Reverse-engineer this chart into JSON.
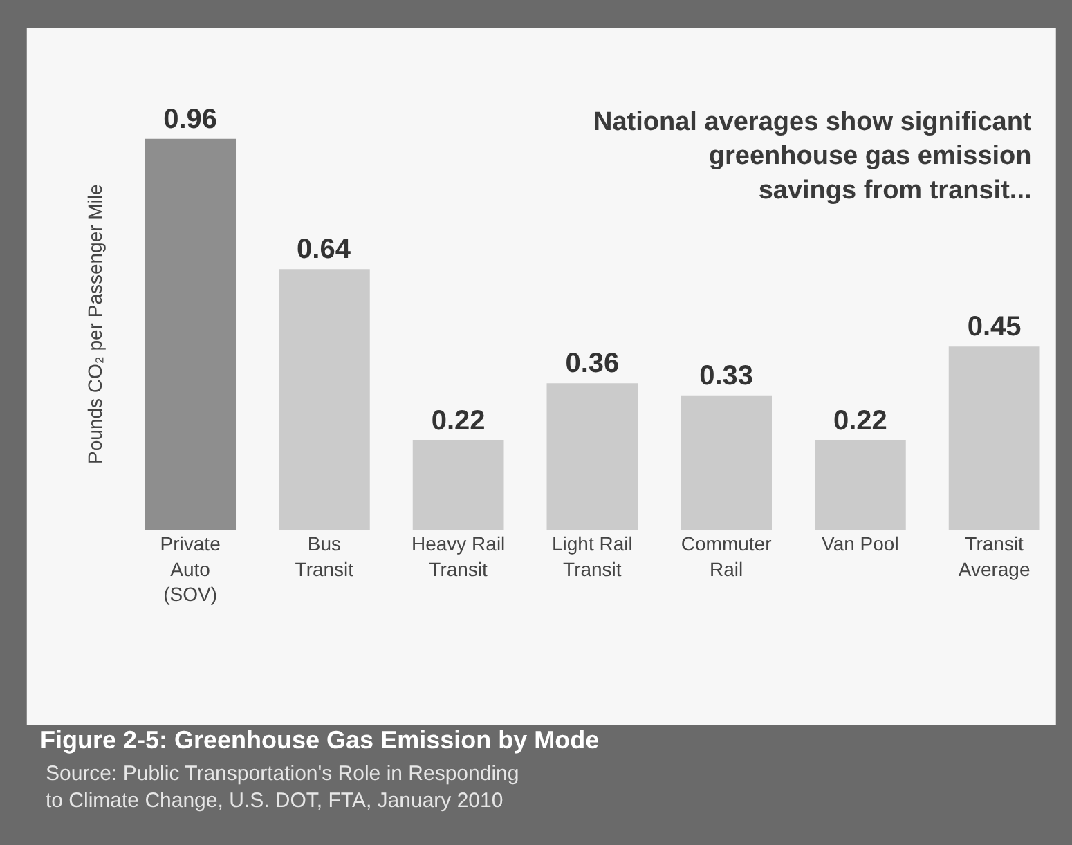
{
  "chart_data": {
    "type": "bar",
    "title": "Figure 2-5: Greenhouse Gas Emission by Mode",
    "ylabel": "Pounds CO₂ per Passenger Mile",
    "categories": [
      "Private\nAuto\n(SOV)",
      "Bus\nTransit",
      "Heavy Rail\nTransit",
      "Light Rail\nTransit",
      "Commuter\nRail",
      "Van Pool",
      "Transit\nAverage"
    ],
    "values": [
      0.96,
      0.64,
      0.22,
      0.36,
      0.33,
      0.22,
      0.45
    ],
    "colors": [
      "#8e8e8e",
      "#cbcbcb",
      "#cbcbcb",
      "#cbcbcb",
      "#cbcbcb",
      "#cbcbcb",
      "#cbcbcb"
    ],
    "data_labels": true,
    "grid": false,
    "legend": false,
    "annotations": [
      "National averages show significant\ngreenhouse gas emission\nsavings from transit...",
      "Source: Public Transportation's Role in Responding\nto Climate Change, U.S. DOT, FTA, January 2010"
    ]
  }
}
